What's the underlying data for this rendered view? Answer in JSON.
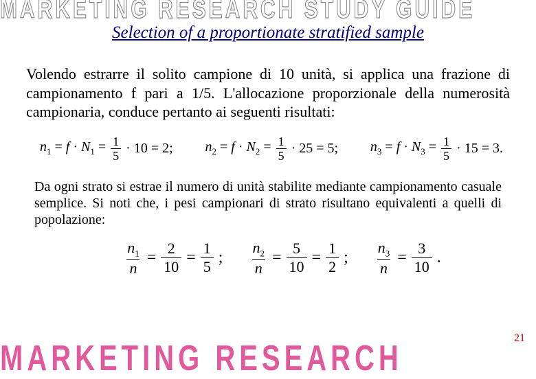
{
  "watermark_top": "MARKETING RESEARCH STUDY GUIDE",
  "watermark_bottom": "MARKETING RESEARCH",
  "title": "Selection of a proportionate stratified sample",
  "para1": "Volendo estrarre il solito campione di 10 unità, si applica una frazione di campionamento f pari a 1/5. L'allocazione proporzionale della numerosità campionaria, conduce pertanto ai seguenti risultati:",
  "para2": "Da ogni strato si estrae il numero di unità stabilite mediante campionamento casuale semplice. Si noti che, i pesi campionari di strato risultano equivalenti a quelli di popolazione:",
  "page_number": "21",
  "eq1": {
    "terms": [
      {
        "n_sub": "1",
        "N_sub": "1",
        "f_num": "1",
        "f_den": "5",
        "N_val": "10",
        "result": "2"
      },
      {
        "n_sub": "2",
        "N_sub": "2",
        "f_num": "1",
        "f_den": "5",
        "N_val": "25",
        "result": "5"
      },
      {
        "n_sub": "3",
        "N_sub": "3",
        "f_num": "1",
        "f_den": "5",
        "N_val": "15",
        "result": "3"
      }
    ],
    "sep": ";",
    "end": "."
  },
  "eq2": {
    "terms": [
      {
        "n_sub": "1",
        "num": "2",
        "den": "10",
        "r_num": "1",
        "r_den": "5"
      },
      {
        "n_sub": "2",
        "num": "5",
        "den": "10",
        "r_num": "1",
        "r_den": "2"
      },
      {
        "n_sub": "3",
        "num": "3",
        "den": "10",
        "r_num": "",
        "r_den": ""
      }
    ],
    "sep": ";",
    "end": "."
  },
  "colors": {
    "title": "#000080",
    "pagenum": "#c00000",
    "wm_bottom": "#e05a9c"
  }
}
